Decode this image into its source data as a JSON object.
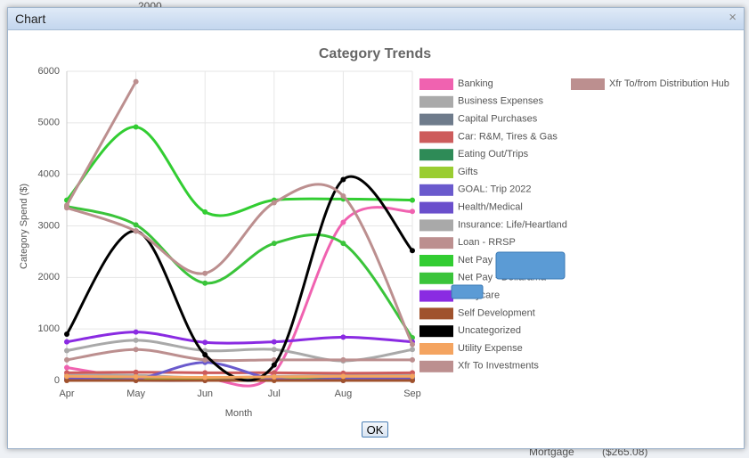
{
  "background": {
    "year": "2000",
    "mortgage": "Mortgage",
    "amount": "($265.08)"
  },
  "dialog": {
    "title": "Chart",
    "close": "×",
    "button": "OK"
  },
  "chart_data": {
    "type": "line",
    "title": "Category Trends",
    "x_label": "Month",
    "y_label": "Category Spend ($)",
    "categories": [
      "Apr",
      "May",
      "Jun",
      "Jul",
      "Aug",
      "Sep"
    ],
    "ylim": [
      0,
      6000
    ],
    "yticks": [
      0,
      1000,
      2000,
      3000,
      4000,
      5000,
      6000
    ],
    "grid": true,
    "legend": "right",
    "series": [
      {
        "name": "Banking",
        "color": "#f062b0",
        "values": [
          250,
          50,
          30,
          150,
          3070,
          3280
        ]
      },
      {
        "name": "Business Expenses",
        "color": "#aaaaaa",
        "values": [
          100,
          100,
          50,
          80,
          100,
          100
        ]
      },
      {
        "name": "Capital Purchases",
        "color": "#6e7b8b",
        "values": [
          50,
          30,
          20,
          40,
          30,
          40
        ]
      },
      {
        "name": "Car: R&M, Tires & Gas",
        "color": "#cd5c5c",
        "values": [
          150,
          160,
          150,
          150,
          140,
          150
        ]
      },
      {
        "name": "Eating Out/Trips",
        "color": "#2e8b57",
        "values": [
          50,
          40,
          30,
          50,
          40,
          50
        ]
      },
      {
        "name": "Gifts",
        "color": "#9acd32",
        "values": [
          20,
          10,
          10,
          20,
          20,
          20
        ]
      },
      {
        "name": "GOAL: Trip 2022",
        "color": "#6a5acd",
        "values": [
          50,
          30,
          350,
          30,
          30,
          30
        ]
      },
      {
        "name": "Health/Medical",
        "color": "#6a4fcc",
        "values": [
          10,
          0,
          0,
          10,
          0,
          10
        ]
      },
      {
        "name": "Insurance: Life/Heartland",
        "color": "#a9a9a9",
        "values": [
          580,
          780,
          580,
          600,
          380,
          600
        ]
      },
      {
        "name": "Loan - RRSP",
        "color": "#bc8f8f",
        "values": [
          400,
          600,
          400,
          400,
          400,
          400
        ]
      },
      {
        "name": "Net Pay -",
        "color": "#32cd32",
        "values": [
          3500,
          4920,
          3270,
          3500,
          3520,
          3500
        ]
      },
      {
        "name": "Net Pay - Dollarama",
        "color": "#3ac43a",
        "values": [
          3380,
          3020,
          1890,
          2660,
          2660,
          830
        ]
      },
      {
        "name": ": Daycare",
        "color": "#8a2be2",
        "values": [
          750,
          940,
          740,
          750,
          840,
          750
        ]
      },
      {
        "name": "Self Development",
        "color": "#a0522d",
        "values": [
          0,
          0,
          0,
          0,
          0,
          0
        ]
      },
      {
        "name": "Uncategorized",
        "color": "#000000",
        "values": [
          900,
          2900,
          500,
          300,
          3900,
          2520
        ]
      },
      {
        "name": "Utility Expense",
        "color": "#f4a460",
        "values": [
          80,
          70,
          60,
          70,
          80,
          80
        ]
      },
      {
        "name": "Xfr To Investments",
        "color": "#bc8f8f",
        "values": [
          3350,
          2900,
          2080,
          3450,
          3580,
          700
        ]
      },
      {
        "name": "Xfr To/from Distribution Hub",
        "color": "#bc8f8f",
        "values": [
          3400,
          5800,
          null,
          null,
          null,
          null
        ]
      }
    ]
  }
}
